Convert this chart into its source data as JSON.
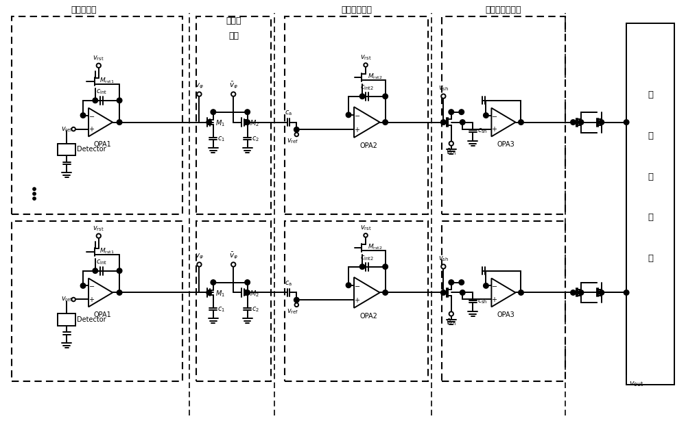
{
  "fig_width": 10.0,
  "fig_height": 6.18,
  "dpi": 100,
  "bg_color": "#ffffff",
  "lc": "#000000",
  "lw": 1.4,
  "labels": {
    "block1": "输入级电路",
    "block2_1": "低通滤",
    "block2_2": "波器",
    "block3": "三级放大电路",
    "block4": "采样输出级电路",
    "block5_1": "移",
    "block5_2": "位",
    "block5_3": "寄",
    "block5_4": "存",
    "block5_5": "器",
    "vout": "$v_{\\rm out}$"
  }
}
